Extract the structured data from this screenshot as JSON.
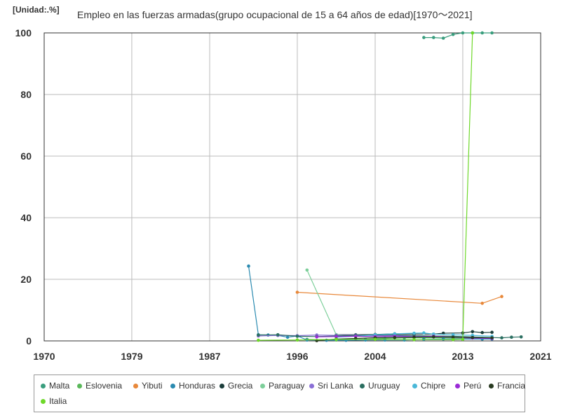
{
  "chart_data": {
    "type": "line",
    "unit_label": "[Unidad:.%]",
    "title": "Empleo en las fuerzas armadas(grupo ocupacional de 15 a 64 años de edad)[1970～2021]",
    "xlabel": "",
    "ylabel": "",
    "xlim": [
      1970,
      2021
    ],
    "ylim": [
      0,
      100
    ],
    "x_ticks": [
      1970,
      1979,
      1987,
      1996,
      2004,
      2013,
      2021
    ],
    "y_ticks": [
      0,
      20,
      40,
      60,
      80,
      100
    ],
    "grid": true,
    "legend_position": "bottom",
    "series": [
      {
        "name": "Malta",
        "color": "#3a9e7e",
        "points": [
          [
            2009,
            98.5
          ],
          [
            2010,
            98.5
          ],
          [
            2011,
            98.3
          ],
          [
            2012,
            99.5
          ],
          [
            2013,
            100
          ],
          [
            2014,
            100
          ],
          [
            2015,
            100
          ],
          [
            2016,
            100
          ]
        ]
      },
      {
        "name": "Eslovenia",
        "color": "#5ab85a",
        "points": [
          [
            1997,
            0.5
          ],
          [
            2000,
            0.3
          ],
          [
            2003,
            0.5
          ],
          [
            2005,
            0.8
          ],
          [
            2007,
            1.0
          ],
          [
            2009,
            1.0
          ],
          [
            2011,
            1.0
          ],
          [
            2013,
            0.9
          ],
          [
            2015,
            0.8
          ],
          [
            2016,
            0.7
          ]
        ]
      },
      {
        "name": "Yibuti",
        "color": "#e8883a",
        "points": [
          [
            1996,
            15.8
          ],
          [
            2015,
            12.2
          ],
          [
            2017,
            14.4
          ]
        ]
      },
      {
        "name": "Honduras",
        "color": "#2a8ab0",
        "points": [
          [
            1991,
            24.3
          ],
          [
            1992,
            2.0
          ],
          [
            1993,
            1.9
          ],
          [
            1994,
            1.8
          ],
          [
            1995,
            1.2
          ],
          [
            1996,
            1.6
          ],
          [
            1997,
            0.3
          ],
          [
            1999,
            0.2
          ],
          [
            2001,
            0.2
          ],
          [
            2003,
            0.3
          ],
          [
            2005,
            0.3
          ],
          [
            2007,
            0.3
          ],
          [
            2009,
            0.5
          ],
          [
            2011,
            0.6
          ],
          [
            2013,
            0.6
          ],
          [
            2015,
            0.6
          ],
          [
            2016,
            0.6
          ]
        ]
      },
      {
        "name": "Grecia",
        "color": "#1b3d3a",
        "points": [
          [
            2000,
            2.0
          ],
          [
            2002,
            2.0
          ],
          [
            2004,
            2.1
          ],
          [
            2006,
            2.3
          ],
          [
            2008,
            2.2
          ],
          [
            2010,
            2.2
          ],
          [
            2011,
            2.5
          ],
          [
            2013,
            2.6
          ],
          [
            2014,
            3.0
          ],
          [
            2015,
            2.7
          ],
          [
            2016,
            2.8
          ]
        ]
      },
      {
        "name": "Paraguay",
        "color": "#7dcf9a",
        "points": [
          [
            1997,
            23.0
          ],
          [
            2000,
            2.0
          ],
          [
            2002,
            1.5
          ],
          [
            2004,
            1.3
          ],
          [
            2006,
            1.4
          ],
          [
            2008,
            1.5
          ],
          [
            2010,
            1.3
          ],
          [
            2012,
            1.2
          ],
          [
            2014,
            1.0
          ],
          [
            2016,
            1.0
          ]
        ]
      },
      {
        "name": "Sri Lanka",
        "color": "#8a6fd6",
        "points": [
          [
            1992,
            1.6
          ],
          [
            1994,
            1.8
          ],
          [
            1996,
            1.7
          ],
          [
            1998,
            1.9
          ],
          [
            2000,
            1.8
          ],
          [
            2002,
            1.9
          ],
          [
            2004,
            1.7
          ],
          [
            2006,
            1.8
          ],
          [
            2008,
            1.5
          ],
          [
            2010,
            1.3
          ],
          [
            2012,
            1.2
          ],
          [
            2014,
            1.1
          ],
          [
            2016,
            1.0
          ]
        ]
      },
      {
        "name": "Uruguay",
        "color": "#2a6e60",
        "points": [
          [
            1992,
            1.9
          ],
          [
            1994,
            2.0
          ],
          [
            1996,
            1.5
          ],
          [
            1998,
            1.4
          ],
          [
            2000,
            1.6
          ],
          [
            2002,
            1.8
          ],
          [
            2004,
            1.9
          ],
          [
            2006,
            2.0
          ],
          [
            2008,
            1.7
          ],
          [
            2010,
            1.6
          ],
          [
            2012,
            1.5
          ],
          [
            2014,
            1.3
          ],
          [
            2016,
            1.1
          ],
          [
            2017,
            1.0
          ],
          [
            2018,
            1.2
          ],
          [
            2019,
            1.3
          ]
        ]
      },
      {
        "name": "Chipre",
        "color": "#4ab8d8",
        "points": [
          [
            2000,
            1.2
          ],
          [
            2002,
            1.5
          ],
          [
            2004,
            2.0
          ],
          [
            2006,
            2.3
          ],
          [
            2008,
            2.5
          ],
          [
            2009,
            2.6
          ],
          [
            2010,
            2.2
          ],
          [
            2012,
            2.0
          ],
          [
            2014,
            1.8
          ],
          [
            2016,
            1.5
          ]
        ]
      },
      {
        "name": "Perú",
        "color": "#9a2ad6",
        "points": [
          [
            1998,
            1.3
          ],
          [
            2000,
            1.4
          ],
          [
            2002,
            1.5
          ],
          [
            2004,
            1.4
          ],
          [
            2006,
            1.5
          ],
          [
            2008,
            1.3
          ],
          [
            2010,
            1.5
          ],
          [
            2012,
            1.2
          ],
          [
            2014,
            0.9
          ],
          [
            2016,
            0.8
          ]
        ]
      },
      {
        "name": "Francia",
        "color": "#283a20",
        "points": [
          [
            1998,
            0.1
          ],
          [
            2000,
            0.6
          ],
          [
            2002,
            0.8
          ],
          [
            2004,
            1.0
          ],
          [
            2006,
            1.1
          ],
          [
            2008,
            1.2
          ],
          [
            2010,
            1.3
          ],
          [
            2012,
            1.2
          ],
          [
            2014,
            1.1
          ],
          [
            2016,
            1.0
          ]
        ]
      },
      {
        "name": "Italia",
        "color": "#6ed82a",
        "points": [
          [
            1992,
            0.2
          ],
          [
            1996,
            0.3
          ],
          [
            2000,
            0.5
          ],
          [
            2004,
            0.5
          ],
          [
            2008,
            0.4
          ],
          [
            2012,
            0.4
          ],
          [
            2013,
            0.5
          ],
          [
            2014,
            100
          ]
        ]
      }
    ]
  }
}
